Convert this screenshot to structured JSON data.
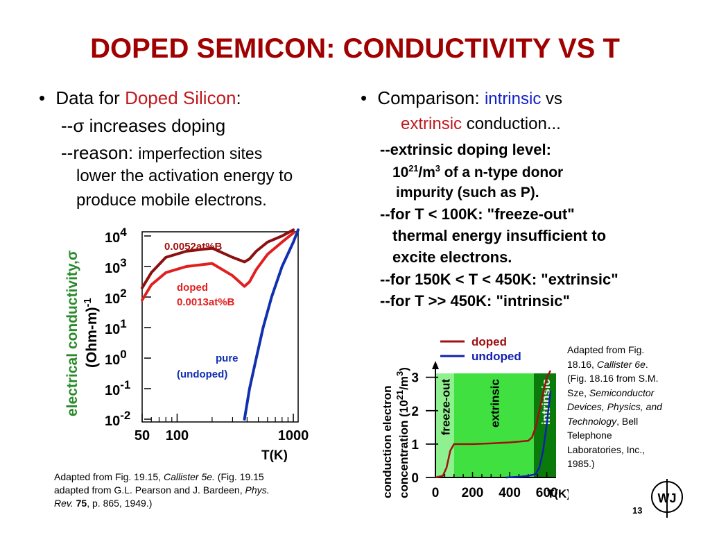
{
  "title": "DOPED SEMICON: CONDUCTIVITY VS T",
  "left": {
    "bullet": "•",
    "label": "Data for ",
    "highlight": "Doped Silicon",
    "colon": ":",
    "line1_prefix": "--",
    "line1_sigma": "σ",
    "line1_rest": " increases doping",
    "line2_prefix": "--reason: ",
    "line2_rest": " imperfection sites",
    "line3": "lower the activation energy to",
    "line4": "produce mobile electrons."
  },
  "right": {
    "bullet": "•",
    "label": "Comparison: ",
    "intrinsic": "intrinsic",
    "vs": " vs",
    "extrinsic": "extrinsic",
    "conduction": " conduction...",
    "l1": "--extrinsic doping level:",
    "l2_base": "10",
    "l2_exp1": "21",
    "l2_mid": "/m",
    "l2_exp2": "3",
    "l2_rest": " of a n-type donor",
    "l3": "impurity (such as P).",
    "l4": "--for T < 100K: \"freeze-out\"",
    "l5": "thermal energy insufficient to",
    "l6": "excite electrons.",
    "l7": "--for 150K < T < 450K: \"extrinsic\"",
    "l8": "--for T >> 450K:  \"intrinsic\""
  },
  "caption_left": {
    "a": "Adapted from Fig. 19.15, ",
    "a_it": "Callister 5e.",
    "b": "  (Fig. 19.15",
    "c": "adapted from G.L. Pearson and J. Bardeen, ",
    "c_it": "Phys.",
    "d_it": "Rev.",
    "d_bold": " 75",
    "d": ", p. 865, 1949.)"
  },
  "caption_right": {
    "l1": "Adapted from Fig.",
    "l2a": "18.16, ",
    "l2it": "Callister 6e",
    "l2b": ".",
    "l3": "(Fig. 18.16 from S.M.",
    "l4a": "Sze, ",
    "l4it": "Semiconductor",
    "l5it": "Devices, Physics, and",
    "l6it": "Technology",
    "l6b": ", Bell",
    "l7": "Telephone",
    "l8": "Laboratories, Inc.,",
    "l9": "1985.)"
  },
  "page_number": "13",
  "logo_text": "WJ",
  "colors": {
    "title": "#a00000",
    "doped_dark": "#8b1010",
    "doped_light": "#e02020",
    "pure": "#1030b0",
    "green": "#2a8a2a",
    "blue_text": "#1020c8"
  },
  "chart_data": [
    {
      "type": "line",
      "xscale": "log",
      "yscale": "log",
      "ylabel_line1": "electrical conductivity,",
      "ylabel_sigma": "σ",
      "ylabel_line2": "(Ohm-m)",
      "ylabel_exp": "-1",
      "xlabel": "T(K)",
      "x_ticks": [
        "50",
        "100",
        "1000"
      ],
      "y_ticks": [
        {
          "base": "10",
          "exp": "4"
        },
        {
          "base": "10",
          "exp": "3"
        },
        {
          "base": "10",
          "exp": "2"
        },
        {
          "base": "10",
          "exp": "1"
        },
        {
          "base": "10",
          "exp": "0"
        },
        {
          "base": "10",
          "exp": "-1"
        },
        {
          "base": "10",
          "exp": "-2"
        }
      ],
      "xlim": [
        50,
        1100
      ],
      "ylim": [
        -2,
        4
      ],
      "series": [
        {
          "name": "0.0052at%B",
          "color": "#8b1010",
          "x": [
            50,
            60,
            80,
            120,
            200,
            300,
            380,
            420,
            480,
            600,
            800,
            1000
          ],
          "logy": [
            2.3,
            2.8,
            3.3,
            3.5,
            3.6,
            3.3,
            3.15,
            3.25,
            3.5,
            3.8,
            4.0,
            4.2
          ]
        },
        {
          "name_line1": "doped",
          "name_line2": "0.0013at%B",
          "color": "#e02020",
          "x": [
            50,
            60,
            80,
            120,
            200,
            300,
            380,
            420,
            480,
            600,
            800,
            1000
          ],
          "logy": [
            1.9,
            2.4,
            2.8,
            3.0,
            3.1,
            2.7,
            2.35,
            2.5,
            2.9,
            3.4,
            3.8,
            4.1
          ]
        },
        {
          "name_line1": "pure",
          "name_line2": "(undoped)",
          "color": "#1030b0",
          "x": [
            380,
            420,
            480,
            550,
            650,
            800,
            1000,
            1100
          ],
          "logy": [
            -2,
            -1,
            0,
            1,
            2,
            3,
            3.8,
            4.2
          ]
        }
      ]
    },
    {
      "type": "line",
      "ylabel_line1": "conduction electron",
      "ylabel_line2a": "concentration (10",
      "ylabel_exp1": "21",
      "ylabel_line2b": "/m",
      "ylabel_exp2": "3",
      "ylabel_line2c": ")",
      "xlabel": "T(K)",
      "x_ticks": [
        "0",
        "200",
        "400",
        "600"
      ],
      "y_ticks": [
        "0",
        "1",
        "2",
        "3"
      ],
      "xlim": [
        0,
        650
      ],
      "ylim": [
        0,
        3.2
      ],
      "regions": [
        {
          "label": "freeze-out",
          "x0": 0,
          "x1": 100,
          "color": "#8ef08e"
        },
        {
          "label": "extrinsic",
          "x0": 100,
          "x1": 530,
          "color": "#3fe03f"
        },
        {
          "label": "intrinsic",
          "x0": 530,
          "x1": 650,
          "color": "#0a7a0a"
        }
      ],
      "series": [
        {
          "name": "doped",
          "color": "#a01010",
          "x": [
            0,
            40,
            60,
            80,
            100,
            200,
            300,
            400,
            500,
            520,
            540,
            560,
            580,
            600,
            620
          ],
          "y": [
            0,
            0.05,
            0.3,
            0.8,
            1.0,
            1.0,
            1.02,
            1.05,
            1.1,
            1.2,
            1.5,
            2.0,
            2.5,
            3.0,
            3.2
          ]
        },
        {
          "name": "undoped",
          "color": "#1020b0",
          "x": [
            380,
            450,
            500,
            540,
            560,
            580,
            600,
            620
          ],
          "y": [
            0,
            0.02,
            0.05,
            0.1,
            0.3,
            0.8,
            1.6,
            2.6
          ]
        }
      ]
    }
  ]
}
